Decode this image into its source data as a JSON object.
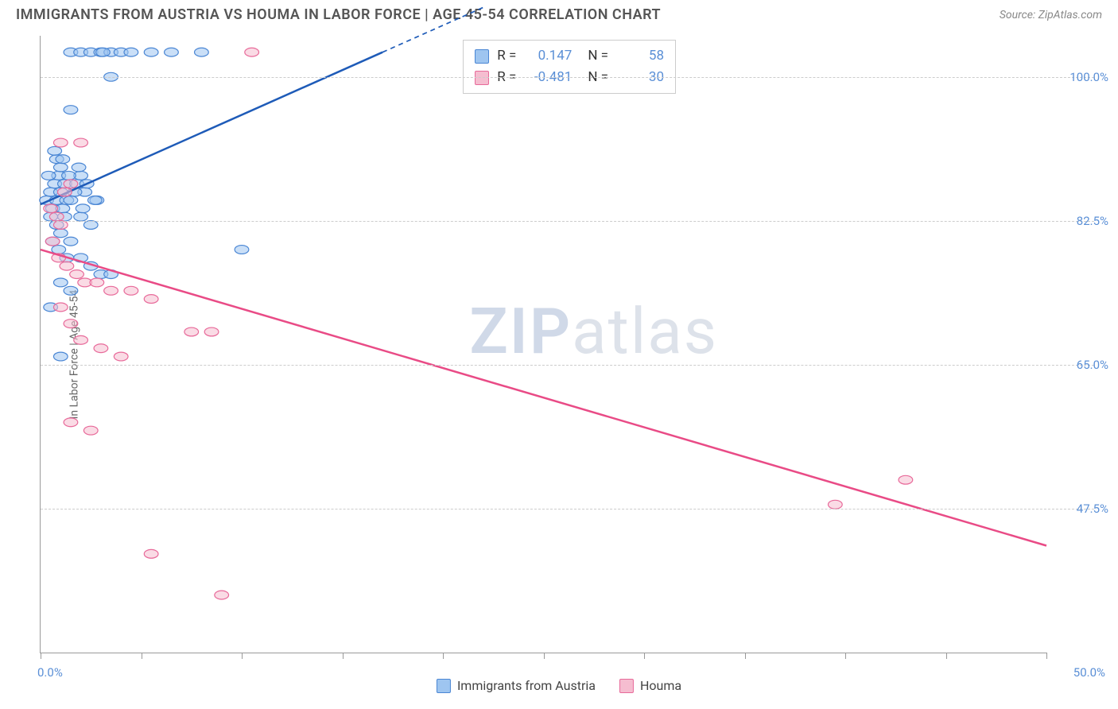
{
  "title": "IMMIGRANTS FROM AUSTRIA VS HOUMA IN LABOR FORCE | AGE 45-54 CORRELATION CHART",
  "source": "Source: ZipAtlas.com",
  "watermark_prefix": "ZIP",
  "watermark_suffix": "atlas",
  "y_axis_label": "In Labor Force | Age 45-54",
  "chart": {
    "type": "scatter",
    "xlim": [
      0,
      50
    ],
    "ylim": [
      30,
      105
    ],
    "x_tick_positions": [
      0,
      5,
      10,
      15,
      20,
      25,
      30,
      35,
      40,
      45,
      50
    ],
    "x_tick_labels": {
      "0": "0.0%",
      "50": "50.0%"
    },
    "y_gridlines": [
      47.5,
      65.0,
      82.5,
      100.0
    ],
    "y_tick_labels": [
      "47.5%",
      "65.0%",
      "82.5%",
      "100.0%"
    ],
    "background_color": "#ffffff",
    "grid_color": "#cccccc",
    "axis_color": "#999999",
    "tick_label_color": "#5a8fd6",
    "marker_radius": 7,
    "marker_opacity": 0.55,
    "series": [
      {
        "name": "Immigrants from Austria",
        "color_fill": "#9ec5f0",
        "color_stroke": "#4a86d4",
        "R": "0.147",
        "N": "58",
        "trend": {
          "x1": 0,
          "y1": 84.5,
          "x2": 17,
          "y2": 103,
          "color": "#1e5bb8",
          "width": 2.5,
          "dash_extend_to_x": 22
        },
        "points": [
          [
            0.3,
            85
          ],
          [
            0.5,
            86
          ],
          [
            0.6,
            84
          ],
          [
            0.7,
            87
          ],
          [
            0.8,
            85
          ],
          [
            0.9,
            88
          ],
          [
            1.0,
            86
          ],
          [
            1.1,
            84
          ],
          [
            1.2,
            87
          ],
          [
            1.3,
            85
          ],
          [
            0.5,
            83
          ],
          [
            0.8,
            82
          ],
          [
            1.0,
            81
          ],
          [
            1.2,
            83
          ],
          [
            1.5,
            85
          ],
          [
            1.5,
            103
          ],
          [
            2.0,
            103
          ],
          [
            2.5,
            103
          ],
          [
            3.0,
            103
          ],
          [
            3.5,
            103
          ],
          [
            4.0,
            103
          ],
          [
            5.5,
            103
          ],
          [
            6.5,
            103
          ],
          [
            8.0,
            103
          ],
          [
            3.5,
            100
          ],
          [
            1.5,
            96
          ],
          [
            0.8,
            90
          ],
          [
            2.0,
            83
          ],
          [
            2.5,
            82
          ],
          [
            1.0,
            89
          ],
          [
            1.8,
            87
          ],
          [
            2.2,
            86
          ],
          [
            1.5,
            80
          ],
          [
            2.0,
            78
          ],
          [
            2.5,
            77
          ],
          [
            3.0,
            76
          ],
          [
            3.5,
            76
          ],
          [
            1.0,
            75
          ],
          [
            1.5,
            74
          ],
          [
            0.5,
            72
          ],
          [
            1.0,
            66
          ],
          [
            10.0,
            79
          ],
          [
            2.0,
            88
          ],
          [
            2.8,
            85
          ],
          [
            0.6,
            80
          ],
          [
            0.9,
            79
          ],
          [
            1.3,
            78
          ],
          [
            1.7,
            86
          ],
          [
            2.1,
            84
          ],
          [
            0.4,
            88
          ],
          [
            0.7,
            91
          ],
          [
            1.1,
            90
          ],
          [
            1.4,
            88
          ],
          [
            1.9,
            89
          ],
          [
            2.3,
            87
          ],
          [
            2.7,
            85
          ],
          [
            3.1,
            103
          ],
          [
            4.5,
            103
          ]
        ]
      },
      {
        "name": "Houma",
        "color_fill": "#f5bdd0",
        "color_stroke": "#e86a9a",
        "R": "-0.481",
        "N": "30",
        "trend": {
          "x1": 0,
          "y1": 79,
          "x2": 50,
          "y2": 43,
          "color": "#e94b86",
          "width": 2.5
        },
        "points": [
          [
            0.5,
            84
          ],
          [
            0.8,
            83
          ],
          [
            1.0,
            82
          ],
          [
            1.2,
            86
          ],
          [
            1.5,
            87
          ],
          [
            1.0,
            92
          ],
          [
            2.0,
            92
          ],
          [
            0.6,
            80
          ],
          [
            0.9,
            78
          ],
          [
            1.3,
            77
          ],
          [
            1.8,
            76
          ],
          [
            2.2,
            75
          ],
          [
            2.8,
            75
          ],
          [
            3.5,
            74
          ],
          [
            4.5,
            74
          ],
          [
            5.5,
            73
          ],
          [
            1.0,
            72
          ],
          [
            1.5,
            70
          ],
          [
            2.0,
            68
          ],
          [
            3.0,
            67
          ],
          [
            4.0,
            66
          ],
          [
            7.5,
            69
          ],
          [
            8.5,
            69
          ],
          [
            1.5,
            58
          ],
          [
            2.5,
            57
          ],
          [
            5.5,
            42
          ],
          [
            9.0,
            37
          ],
          [
            10.5,
            103
          ],
          [
            39.5,
            48
          ],
          [
            43.0,
            51
          ]
        ]
      }
    ]
  },
  "stats_box": {
    "R_label": "R =",
    "N_label": "N ="
  },
  "legend": {
    "items": [
      "Immigrants from Austria",
      "Houma"
    ]
  }
}
